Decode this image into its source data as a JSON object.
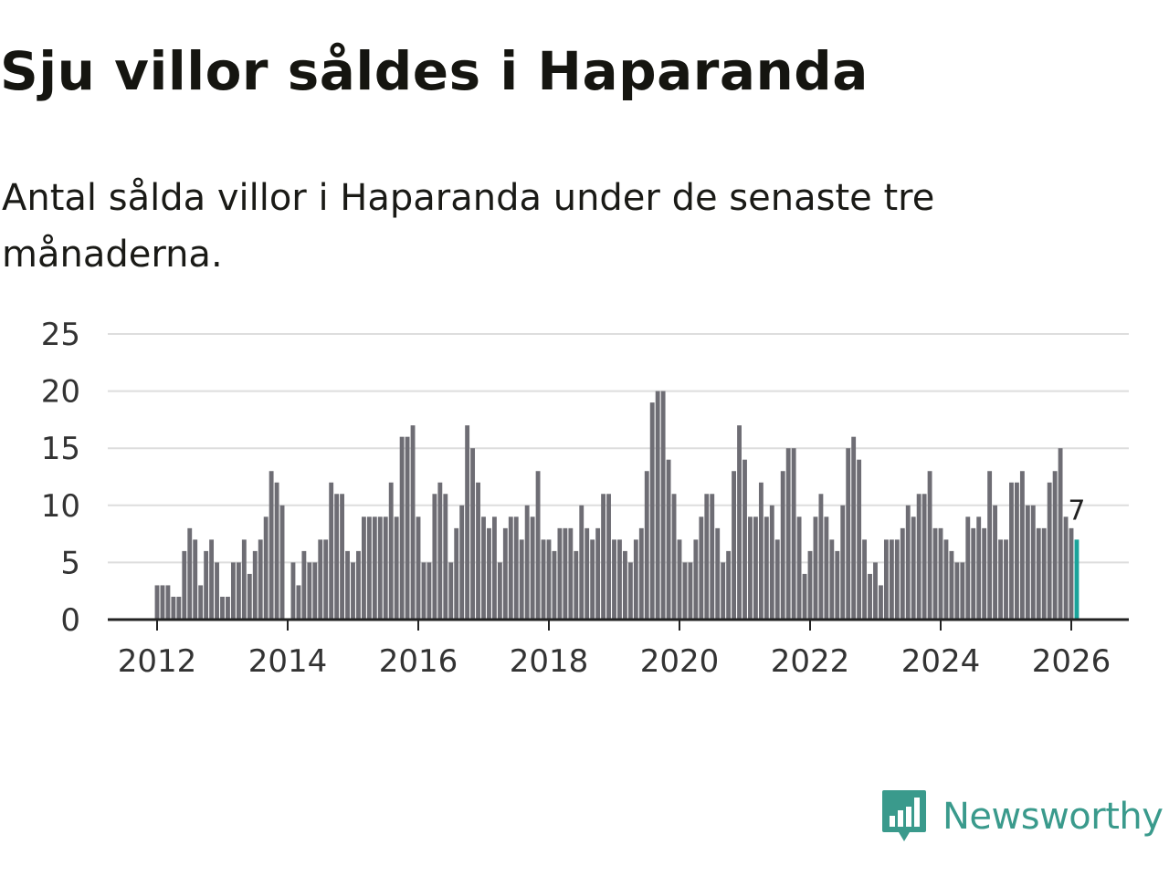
{
  "title": "Sju villor såldes i Haparanda",
  "subtitle": "Antal sålda villor i Haparanda under de senaste tre månaderna.",
  "brand": {
    "name": "Newsworthy",
    "color": "#3a9a8c",
    "icon": "newsworthy-logo-icon"
  },
  "colors": {
    "bar": "#6e6d74",
    "highlight": "#1aa39a",
    "grid": "#dddddd",
    "axis": "#222222"
  },
  "chart_data": {
    "type": "bar",
    "title": "Sju villor såldes i Haparanda",
    "xlabel": "",
    "ylabel": "",
    "ylim": [
      0,
      25
    ],
    "yticks": [
      "0",
      "5",
      "10",
      "15",
      "20",
      "25"
    ],
    "xticks": [
      "2012",
      "2014",
      "2016",
      "2018",
      "2020",
      "2022",
      "2024",
      "2026"
    ],
    "grid": true,
    "start_month": "2012-01",
    "values": [
      3,
      3,
      3,
      2,
      2,
      6,
      8,
      7,
      3,
      6,
      7,
      5,
      2,
      2,
      5,
      5,
      7,
      4,
      6,
      7,
      9,
      13,
      12,
      10,
      0,
      5,
      3,
      6,
      5,
      5,
      7,
      7,
      12,
      11,
      11,
      6,
      5,
      6,
      9,
      9,
      9,
      9,
      9,
      12,
      9,
      16,
      16,
      17,
      9,
      5,
      5,
      11,
      12,
      11,
      5,
      8,
      10,
      17,
      15,
      12,
      9,
      8,
      9,
      5,
      8,
      9,
      9,
      7,
      10,
      9,
      13,
      7,
      7,
      6,
      8,
      8,
      8,
      6,
      10,
      8,
      7,
      8,
      11,
      11,
      7,
      7,
      6,
      5,
      7,
      8,
      13,
      19,
      20,
      20,
      14,
      11,
      7,
      5,
      5,
      7,
      9,
      11,
      11,
      8,
      5,
      6,
      13,
      17,
      14,
      9,
      9,
      12,
      9,
      10,
      7,
      13,
      15,
      15,
      9,
      4,
      6,
      9,
      11,
      9,
      7,
      6,
      10,
      15,
      16,
      14,
      7,
      4,
      5,
      3,
      7,
      7,
      7,
      8,
      10,
      9,
      11,
      11,
      13,
      8,
      8,
      7,
      6,
      5,
      5,
      9,
      8,
      9,
      8,
      13,
      10,
      7,
      7,
      12,
      12,
      13,
      10,
      10,
      8,
      8,
      12,
      13,
      15,
      9,
      8,
      7
    ],
    "highlight_last": true,
    "last_label": "7"
  }
}
